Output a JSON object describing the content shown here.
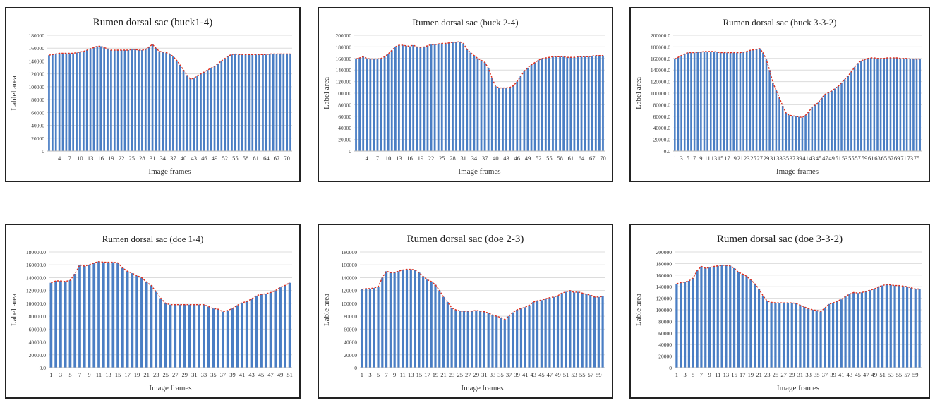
{
  "figure": {
    "description_label": ""
  },
  "chart_data": [
    {
      "type": "bar",
      "title": "Rumen dorsal sac (buck1-4)",
      "xlabel": "Image frames",
      "ylabel": "Lablel area",
      "ylim": [
        0,
        180000
      ],
      "yticks": [
        "0",
        "20000",
        "40000",
        "60000",
        "80000",
        "100000",
        "120000",
        "140000",
        "160000",
        "180000"
      ],
      "trendline": "red dotted",
      "x": [
        1,
        2,
        3,
        4,
        5,
        6,
        7,
        8,
        9,
        10,
        11,
        12,
        13,
        14,
        15,
        16,
        17,
        18,
        19,
        20,
        21,
        22,
        23,
        24,
        25,
        26,
        27,
        28,
        29,
        30,
        31,
        32,
        33,
        34,
        35,
        36,
        37,
        38,
        39,
        40,
        41,
        42,
        43,
        44,
        45,
        46,
        47,
        48,
        49,
        50,
        51,
        52,
        53,
        54,
        55,
        56,
        57,
        58,
        59,
        60,
        61,
        62,
        63,
        64,
        65,
        66,
        67,
        68,
        69,
        70,
        71
      ],
      "xtick_labels": [
        "1",
        "4",
        "7",
        "10",
        "13",
        "16",
        "19",
        "22",
        "25",
        "28",
        "31",
        "34",
        "37",
        "40",
        "43",
        "46",
        "49",
        "52",
        "55",
        "58",
        "61",
        "64",
        "67",
        "70"
      ],
      "values": [
        149000,
        150000,
        151000,
        152000,
        152000,
        152000,
        152000,
        152000,
        153000,
        154000,
        155000,
        157000,
        159000,
        161000,
        163000,
        163000,
        161000,
        159000,
        157000,
        157000,
        157000,
        157000,
        157000,
        157000,
        158000,
        158000,
        157000,
        157000,
        158000,
        162000,
        166000,
        160000,
        155000,
        154000,
        153000,
        151000,
        147000,
        141000,
        134000,
        126000,
        118000,
        112000,
        113000,
        117000,
        120000,
        123000,
        126000,
        129000,
        132000,
        136000,
        140000,
        144000,
        148000,
        150000,
        151000,
        150000,
        150000,
        150000,
        150000,
        150000,
        150000,
        150000,
        150000,
        150000,
        151000,
        151000,
        151000,
        151000,
        151000,
        151000,
        151000
      ]
    },
    {
      "type": "bar",
      "title": "Rumen dorsal sac (buck 2-4)",
      "xlabel": "Image frames",
      "ylabel": "Label area",
      "ylim": [
        0,
        200000
      ],
      "yticks": [
        "0",
        "20000",
        "40000",
        "60000",
        "80000",
        "100000",
        "120000",
        "140000",
        "160000",
        "180000",
        "200000"
      ],
      "trendline": "red dotted",
      "x": [
        1,
        2,
        3,
        4,
        5,
        6,
        7,
        8,
        9,
        10,
        11,
        12,
        13,
        14,
        15,
        16,
        17,
        18,
        19,
        20,
        21,
        22,
        23,
        24,
        25,
        26,
        27,
        28,
        29,
        30,
        31,
        32,
        33,
        34,
        35,
        36,
        37,
        38,
        39,
        40,
        41,
        42,
        43,
        44,
        45,
        46,
        47,
        48,
        49,
        50,
        51,
        52,
        53,
        54,
        55,
        56,
        57,
        58,
        59,
        60,
        61,
        62,
        63,
        64,
        65,
        66,
        67,
        68,
        69,
        70
      ],
      "xtick_labels": [
        "1",
        "4",
        "7",
        "10",
        "13",
        "16",
        "19",
        "22",
        "25",
        "28",
        "31",
        "34",
        "37",
        "40",
        "43",
        "46",
        "49",
        "52",
        "55",
        "58",
        "61",
        "64",
        "67",
        "70"
      ],
      "values": [
        159000,
        161000,
        163000,
        160000,
        159000,
        159000,
        159000,
        160000,
        163000,
        168000,
        174000,
        180000,
        183000,
        183000,
        182000,
        181000,
        183000,
        180000,
        179000,
        180000,
        182000,
        184000,
        184000,
        185000,
        186000,
        186000,
        187000,
        188000,
        188000,
        189000,
        186000,
        176000,
        170000,
        165000,
        160000,
        157000,
        153000,
        143000,
        126000,
        112000,
        109000,
        109000,
        109000,
        110000,
        113000,
        120000,
        129000,
        138000,
        144000,
        149000,
        153000,
        157000,
        160000,
        161000,
        162000,
        163000,
        163000,
        163000,
        163000,
        162000,
        162000,
        162000,
        163000,
        163000,
        163000,
        163000,
        164000,
        165000,
        165000,
        165000
      ]
    },
    {
      "type": "bar",
      "title": "Rumen dorsal sac (buck 3-3-2)",
      "xlabel": "Image frames",
      "ylabel": "Label area",
      "ylim": [
        0,
        200000
      ],
      "yticks": [
        "0.0",
        "20000.0",
        "40000.0",
        "60000.0",
        "80000.0",
        "100000.0",
        "120000.0",
        "140000.0",
        "160000.0",
        "180000.0",
        "200000.0"
      ],
      "trendline": "red dotted",
      "x": [
        1,
        2,
        3,
        4,
        5,
        6,
        7,
        8,
        9,
        10,
        11,
        12,
        13,
        14,
        15,
        16,
        17,
        18,
        19,
        20,
        21,
        22,
        23,
        24,
        25,
        26,
        27,
        28,
        29,
        30,
        31,
        32,
        33,
        34,
        35,
        36,
        37,
        38,
        39,
        40,
        41,
        42,
        43,
        44,
        45,
        46,
        47,
        48,
        49,
        50,
        51,
        52,
        53,
        54,
        55,
        56,
        57,
        58,
        59,
        60,
        61,
        62,
        63,
        64,
        65,
        66,
        67,
        68,
        69,
        70,
        71,
        72,
        73,
        74,
        75,
        76
      ],
      "xtick_labels": [
        "1",
        "3",
        "5",
        "7",
        "9",
        "11",
        "13",
        "15",
        "17",
        "19",
        "21",
        "23",
        "25",
        "27",
        "29",
        "31",
        "33",
        "35",
        "37",
        "39",
        "41",
        "43",
        "45",
        "47",
        "49",
        "51",
        "53",
        "55",
        "57",
        "59",
        "61",
        "63",
        "65",
        "67",
        "69",
        "71",
        "73",
        "75"
      ],
      "values": [
        159000,
        162000,
        165000,
        168000,
        170000,
        170000,
        170000,
        171000,
        171000,
        172000,
        172000,
        172000,
        172000,
        171000,
        170000,
        170000,
        170000,
        170000,
        170000,
        170000,
        170000,
        171000,
        172000,
        174000,
        175000,
        176000,
        177000,
        170000,
        158000,
        140000,
        118000,
        105000,
        92000,
        78000,
        66000,
        62000,
        61000,
        60000,
        59000,
        58000,
        62000,
        68000,
        76000,
        80000,
        84000,
        92000,
        98000,
        101000,
        104000,
        108000,
        112000,
        118000,
        124000,
        130000,
        137000,
        145000,
        152000,
        156000,
        158000,
        160000,
        161000,
        161000,
        160000,
        160000,
        160000,
        161000,
        161000,
        161000,
        161000,
        160000,
        160000,
        160000,
        159000,
        159000,
        159000,
        159000
      ]
    },
    {
      "type": "bar",
      "title": "Rumen dorsal sac (doe 1-4)",
      "xlabel": "Image frames",
      "ylabel": "Label area",
      "ylim": [
        0,
        180000
      ],
      "yticks": [
        "0.0",
        "20000.0",
        "40000.0",
        "60000.0",
        "80000.0",
        "100000.0",
        "120000.0",
        "140000.0",
        "160000.0",
        "180000.0"
      ],
      "trendline": "red dotted",
      "x": [
        1,
        2,
        3,
        4,
        5,
        6,
        7,
        8,
        9,
        10,
        11,
        12,
        13,
        14,
        15,
        16,
        17,
        18,
        19,
        20,
        21,
        22,
        23,
        24,
        25,
        26,
        27,
        28,
        29,
        30,
        31,
        32,
        33,
        34,
        35,
        36,
        37,
        38,
        39,
        40,
        41,
        42,
        43,
        44,
        45,
        46,
        47,
        48,
        49,
        50,
        51
      ],
      "xtick_labels": [
        "1",
        "3",
        "5",
        "7",
        "9",
        "11",
        "13",
        "15",
        "17",
        "19",
        "21",
        "23",
        "25",
        "27",
        "29",
        "31",
        "33",
        "35",
        "37",
        "39",
        "41",
        "43",
        "45",
        "47",
        "49",
        "51"
      ],
      "values": [
        132000,
        135000,
        135000,
        134000,
        136000,
        146000,
        160000,
        158000,
        160000,
        163000,
        165000,
        164000,
        164000,
        164000,
        163000,
        155000,
        150000,
        147000,
        143000,
        140000,
        133000,
        128000,
        118000,
        108000,
        100000,
        98000,
        98000,
        98000,
        98000,
        98000,
        98000,
        98000,
        98000,
        95000,
        92000,
        91000,
        87000,
        89000,
        92000,
        97000,
        101000,
        103000,
        107000,
        112000,
        114000,
        115000,
        117000,
        120000,
        125000,
        128000,
        132000
      ]
    },
    {
      "type": "bar",
      "title": "Rumen dorsal sac (doe 2-3)",
      "xlabel": "Image frames",
      "ylabel": "Lable area",
      "ylim": [
        0,
        180000
      ],
      "yticks": [
        "0",
        "20000",
        "40000",
        "60000",
        "80000",
        "100000",
        "120000",
        "140000",
        "160000",
        "180000"
      ],
      "trendline": "red dotted",
      "x": [
        1,
        2,
        3,
        4,
        5,
        6,
        7,
        8,
        9,
        10,
        11,
        12,
        13,
        14,
        15,
        16,
        17,
        18,
        19,
        20,
        21,
        22,
        23,
        24,
        25,
        26,
        27,
        28,
        29,
        30,
        31,
        32,
        33,
        34,
        35,
        36,
        37,
        38,
        39,
        40,
        41,
        42,
        43,
        44,
        45,
        46,
        47,
        48,
        49,
        50,
        51,
        52,
        53,
        54,
        55,
        56,
        57,
        58,
        59,
        60
      ],
      "xtick_labels": [
        "1",
        "3",
        "5",
        "7",
        "9",
        "11",
        "13",
        "15",
        "17",
        "19",
        "21",
        "23",
        "25",
        "27",
        "29",
        "31",
        "33",
        "35",
        "37",
        "39",
        "41",
        "43",
        "45",
        "47",
        "49",
        "51",
        "53",
        "55",
        "57",
        "59"
      ],
      "values": [
        122000,
        123000,
        123000,
        124000,
        126000,
        140000,
        150000,
        148000,
        148000,
        150000,
        152000,
        153000,
        153000,
        152000,
        148000,
        142000,
        137000,
        134000,
        129000,
        120000,
        110000,
        102000,
        93000,
        90000,
        88000,
        88000,
        88000,
        88000,
        89000,
        88000,
        87000,
        85000,
        82000,
        80000,
        78000,
        75000,
        80000,
        86000,
        90000,
        92000,
        94000,
        97000,
        102000,
        104000,
        105000,
        107000,
        109000,
        110000,
        112000,
        116000,
        118000,
        120000,
        117000,
        118000,
        116000,
        114000,
        113000,
        110000,
        110000,
        111000
      ]
    },
    {
      "type": "bar",
      "title": "Rumen dorsal sac (doe 3-3-2)",
      "xlabel": "Image frames",
      "ylabel": "Lable area",
      "ylim": [
        0,
        200000
      ],
      "yticks": [
        "0",
        "20000",
        "40000",
        "60000",
        "80000",
        "100000",
        "120000",
        "140000",
        "160000",
        "180000",
        "200000"
      ],
      "trendline": "red dotted",
      "x": [
        1,
        2,
        3,
        4,
        5,
        6,
        7,
        8,
        9,
        10,
        11,
        12,
        13,
        14,
        15,
        16,
        17,
        18,
        19,
        20,
        21,
        22,
        23,
        24,
        25,
        26,
        27,
        28,
        29,
        30,
        31,
        32,
        33,
        34,
        35,
        36,
        37,
        38,
        39,
        40,
        41,
        42,
        43,
        44,
        45,
        46,
        47,
        48,
        49,
        50,
        51,
        52,
        53,
        54,
        55,
        56,
        57,
        58,
        59,
        60
      ],
      "xtick_labels": [
        "1",
        "3",
        "5",
        "7",
        "9",
        "11",
        "13",
        "15",
        "17",
        "19",
        "21",
        "23",
        "25",
        "27",
        "29",
        "31",
        "33",
        "35",
        "37",
        "39",
        "41",
        "43",
        "45",
        "47",
        "49",
        "51",
        "53",
        "55",
        "57",
        "59"
      ],
      "values": [
        145000,
        147000,
        148000,
        150000,
        155000,
        168000,
        175000,
        172000,
        173000,
        175000,
        176000,
        177000,
        177000,
        176000,
        172000,
        165000,
        162000,
        158000,
        152000,
        145000,
        136000,
        124000,
        115000,
        113000,
        112000,
        112000,
        112000,
        112000,
        112000,
        111000,
        108000,
        105000,
        102000,
        100000,
        99000,
        97000,
        103000,
        110000,
        112000,
        115000,
        118000,
        123000,
        127000,
        130000,
        129000,
        130000,
        132000,
        134000,
        136000,
        140000,
        142000,
        144000,
        143000,
        142000,
        142000,
        141000,
        140000,
        138000,
        136000,
        136000
      ]
    }
  ]
}
